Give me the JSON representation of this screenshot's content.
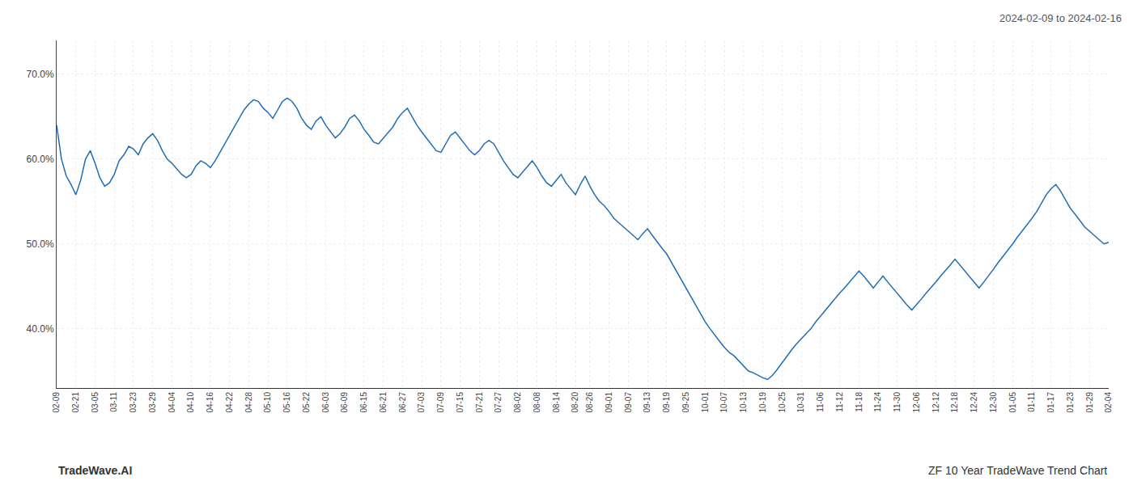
{
  "chart_data": {
    "type": "line",
    "title": "2024-02-09 to 2024-02-16",
    "annotations": [
      "TradeWave.AI",
      "ZF 10 Year TradeWave Trend Chart"
    ],
    "color": "#1f6db5",
    "grid": true,
    "ylim": [
      0.33,
      0.74
    ],
    "yticks": [
      {
        "value": 0.4,
        "label": "40.0%"
      },
      {
        "value": 0.5,
        "label": "50.0%"
      },
      {
        "value": 0.6,
        "label": "60.0%"
      },
      {
        "value": 0.7,
        "label": "70.0%"
      }
    ],
    "categories": [
      "02-09",
      null,
      null,
      null,
      "02-21",
      null,
      null,
      null,
      "03-05",
      null,
      null,
      null,
      "03-11",
      null,
      null,
      null,
      "03-23",
      null,
      null,
      null,
      "03-29",
      null,
      null,
      null,
      "04-04",
      null,
      null,
      null,
      "04-10",
      null,
      null,
      null,
      "04-16",
      null,
      null,
      null,
      "04-22",
      null,
      null,
      null,
      "04-28",
      null,
      null,
      null,
      "05-10",
      null,
      null,
      null,
      "05-16",
      null,
      null,
      null,
      "05-22",
      null,
      null,
      null,
      "06-03",
      null,
      null,
      null,
      "06-09",
      null,
      null,
      null,
      "06-15",
      null,
      null,
      null,
      "06-21",
      null,
      null,
      null,
      "06-27",
      null,
      null,
      null,
      "07-03",
      null,
      null,
      null,
      "07-09",
      null,
      null,
      null,
      "07-15",
      null,
      null,
      null,
      "07-21",
      null,
      null,
      null,
      "07-27",
      null,
      null,
      null,
      "08-02",
      null,
      null,
      null,
      "08-08",
      null,
      null,
      null,
      "08-14",
      null,
      null,
      null,
      "08-20",
      null,
      null,
      "08-26",
      null,
      null,
      null,
      "09-01",
      null,
      null,
      null,
      "09-07",
      null,
      null,
      null,
      "09-13",
      null,
      null,
      null,
      "09-19",
      null,
      null,
      null,
      "09-25",
      null,
      null,
      null,
      "10-01",
      null,
      null,
      null,
      "10-07",
      null,
      null,
      null,
      "10-13",
      null,
      null,
      null,
      "10-19",
      null,
      null,
      null,
      "10-25",
      null,
      null,
      null,
      "10-31",
      null,
      null,
      null,
      "11-06",
      null,
      null,
      null,
      "11-12",
      null,
      null,
      null,
      "11-18",
      null,
      null,
      null,
      "11-24",
      null,
      null,
      null,
      "11-30",
      null,
      null,
      null,
      "12-06",
      null,
      null,
      null,
      "12-12",
      null,
      null,
      null,
      "12-18",
      null,
      null,
      null,
      "12-24",
      null,
      null,
      null,
      "12-30",
      null,
      null,
      null,
      "01-05",
      null,
      null,
      null,
      "01-11",
      null,
      null,
      null,
      "01-17",
      null,
      null,
      null,
      "01-23",
      null,
      null,
      null,
      "01-29",
      null,
      null,
      null,
      "02-04"
    ],
    "values": [
      0.64,
      0.6,
      0.58,
      0.57,
      0.558,
      0.575,
      0.6,
      0.61,
      0.595,
      0.578,
      0.568,
      0.572,
      0.582,
      0.598,
      0.605,
      0.615,
      0.612,
      0.605,
      0.618,
      0.625,
      0.63,
      0.622,
      0.61,
      0.6,
      0.595,
      0.588,
      0.582,
      0.578,
      0.582,
      0.592,
      0.598,
      0.595,
      0.59,
      0.598,
      0.608,
      0.618,
      0.628,
      0.638,
      0.648,
      0.658,
      0.665,
      0.67,
      0.668,
      0.66,
      0.655,
      0.648,
      0.658,
      0.668,
      0.672,
      0.668,
      0.66,
      0.648,
      0.64,
      0.635,
      0.645,
      0.65,
      0.64,
      0.632,
      0.625,
      0.63,
      0.638,
      0.648,
      0.652,
      0.645,
      0.635,
      0.628,
      0.62,
      0.618,
      0.625,
      0.632,
      0.638,
      0.648,
      0.655,
      0.66,
      0.65,
      0.64,
      0.632,
      0.625,
      0.618,
      0.61,
      0.608,
      0.618,
      0.628,
      0.632,
      0.625,
      0.618,
      0.61,
      0.605,
      0.61,
      0.618,
      0.622,
      0.618,
      0.608,
      0.598,
      0.59,
      0.582,
      0.578,
      0.585,
      0.592,
      0.598,
      0.59,
      0.58,
      0.572,
      0.568,
      0.575,
      0.582,
      0.572,
      0.565,
      0.558,
      0.57,
      0.58,
      0.568,
      0.558,
      0.55,
      0.545,
      0.538,
      0.53,
      0.525,
      0.52,
      0.515,
      0.51,
      0.505,
      0.512,
      0.518,
      0.51,
      0.502,
      0.495,
      0.488,
      0.478,
      0.468,
      0.458,
      0.448,
      0.438,
      0.428,
      0.418,
      0.408,
      0.4,
      0.392,
      0.385,
      0.378,
      0.372,
      0.368,
      0.362,
      0.355,
      0.35,
      0.348,
      0.345,
      0.342,
      0.34,
      0.345,
      0.352,
      0.36,
      0.368,
      0.375,
      0.382,
      0.388,
      0.395,
      0.4,
      0.408,
      0.415,
      0.422,
      0.428,
      0.435,
      0.442,
      0.448,
      0.455,
      0.462,
      0.468,
      0.462,
      0.455,
      0.448,
      0.455,
      0.462,
      0.455,
      0.448,
      0.442,
      0.435,
      0.428,
      0.422,
      0.428,
      0.435,
      0.442,
      0.448,
      0.455,
      0.462,
      0.468,
      0.475,
      0.482,
      0.475,
      0.468,
      0.462,
      0.455,
      0.448,
      0.455,
      0.462,
      0.47,
      0.478,
      0.485,
      0.492,
      0.5,
      0.508,
      0.515,
      0.522,
      0.53,
      0.538,
      0.548,
      0.558,
      0.565,
      0.57,
      0.562,
      0.552,
      0.542,
      0.535,
      0.528,
      0.52,
      0.515,
      0.51,
      0.505,
      0.5,
      0.502
    ]
  }
}
